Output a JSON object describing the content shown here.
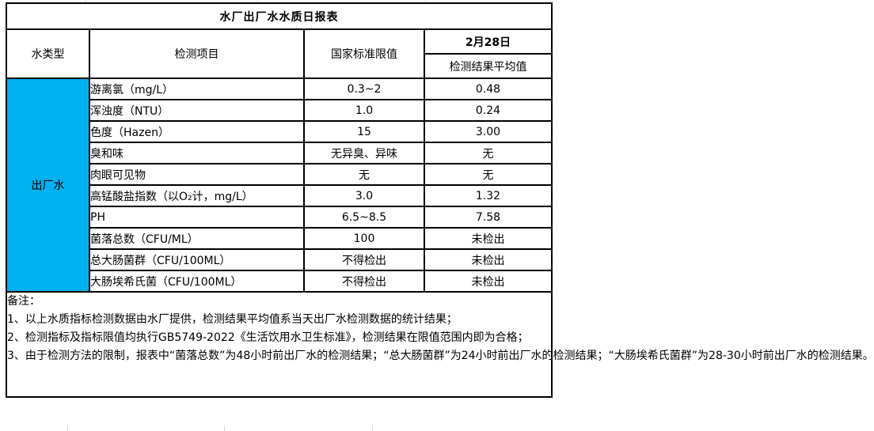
{
  "title": "水厂出厂水水质日报表",
  "header": {
    "water_type": "水类型",
    "test_item": "检测项目",
    "national_standard": "国家标准限值",
    "date": "2月28日",
    "result_avg": "检测结果平均值"
  },
  "water_type_label": "出厂水",
  "rows": [
    {
      "item": "游离氯（mg/L）",
      "standard": "0.3~2",
      "result": "0.48"
    },
    {
      "item": "浑浊度（NTU）",
      "standard": "1.0",
      "result": "0.24"
    },
    {
      "item": "色度（Hazen）",
      "standard": "15",
      "result": "3.00"
    },
    {
      "item": "臭和味",
      "standard": "无异臭、异味",
      "result": "无"
    },
    {
      "item": "肉眼可见物",
      "standard": "无",
      "result": "无"
    },
    {
      "item": "高锰酸盐指数（以O₂计，mg/L）",
      "standard": "3.0",
      "result": "1.32"
    },
    {
      "item": "PH",
      "standard": "6.5~8.5",
      "result": "7.58"
    },
    {
      "item": "菌落总数（CFU/ML）",
      "standard": "100",
      "result": "未检出"
    },
    {
      "item": "总大肠菌群（CFU/100ML）",
      "standard": "不得检出",
      "result": "未检出"
    },
    {
      "item": "大肠埃希氏菌（CFU/100ML）",
      "standard": "不得检出",
      "result": "未检出"
    }
  ],
  "notes": {
    "label": "备注：",
    "items": [
      "1、以上水质指标检测数据由水厂提供，检测结果平均值系当天出厂水检测数据的统计结果；",
      "2、检测指标及指标限值均执行GB5749-2022《生活饮用水卫生标准》，检测结果在限值范围内即为合格；",
      "3、由于检测方法的限制，报表中“菌落总数”为48小时前出厂水的检测结果；“总大肠菌群”为24小时前出厂水的检测结果；“大肠埃希氏菌群”为28-30小时前出厂水的检测结果。"
    ]
  },
  "colors": {
    "water_type_bg": "#00B0F0",
    "border": "#000000"
  }
}
